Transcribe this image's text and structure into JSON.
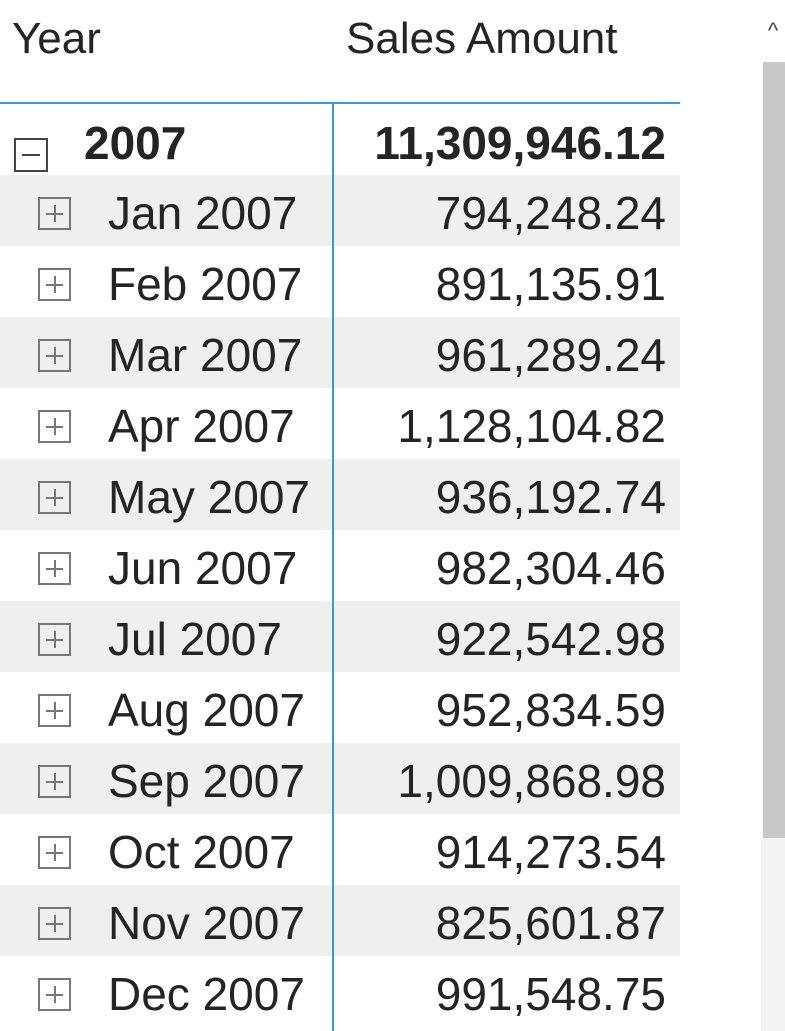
{
  "header": {
    "year_label": "Year",
    "sales_label": "Sales Amount"
  },
  "year_row": {
    "label": "2007",
    "total": "11,309,946.12",
    "toggle_icon": "collapse-icon"
  },
  "months": [
    {
      "label": "Jan 2007",
      "value": "794,248.24"
    },
    {
      "label": "Feb 2007",
      "value": "891,135.91"
    },
    {
      "label": "Mar 2007",
      "value": "961,289.24"
    },
    {
      "label": "Apr 2007",
      "value": "1,128,104.82"
    },
    {
      "label": "May 2007",
      "value": "936,192.74"
    },
    {
      "label": "Jun 2007",
      "value": "982,304.46"
    },
    {
      "label": "Jul 2007",
      "value": "922,542.98"
    },
    {
      "label": "Aug 2007",
      "value": "952,834.59"
    },
    {
      "label": "Sep 2007",
      "value": "1,009,868.98"
    },
    {
      "label": "Oct 2007",
      "value": "914,273.54"
    },
    {
      "label": "Nov 2007",
      "value": "825,601.87"
    },
    {
      "label": "Dec 2007",
      "value": "991,548.75"
    }
  ],
  "scrollbar": {
    "up_icon": "chevron-up-icon",
    "up_glyph": "^"
  },
  "colors": {
    "accent": "#3d97db",
    "alt_row": "#efefef",
    "text": "#252423"
  }
}
